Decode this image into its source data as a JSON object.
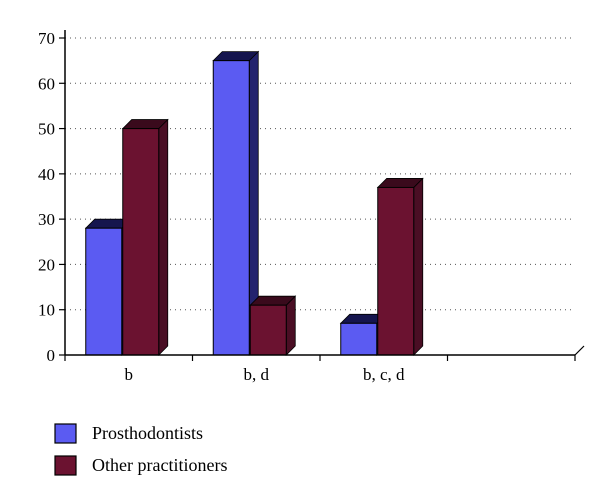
{
  "chart_data": {
    "type": "bar",
    "categories": [
      "b",
      "b, d",
      "b, c, d"
    ],
    "series": [
      {
        "name": "Prosthodontists",
        "values": [
          28,
          65,
          7
        ],
        "front_color": "#5b5bf2",
        "top_color": "#15154e",
        "side_color": "#23236e"
      },
      {
        "name": "Other practitioners",
        "values": [
          50,
          11,
          37
        ],
        "front_color": "#6b1230",
        "top_color": "#3a0a1c",
        "side_color": "#4a0e24"
      }
    ],
    "ylim": [
      0,
      70
    ],
    "ytick_step": 10,
    "yticks": [
      0,
      10,
      20,
      30,
      40,
      50,
      60,
      70
    ],
    "grid": "dotted-horizontal",
    "legend_position": "bottom-left",
    "axis_color": "#000000",
    "bar_style": "3d"
  }
}
